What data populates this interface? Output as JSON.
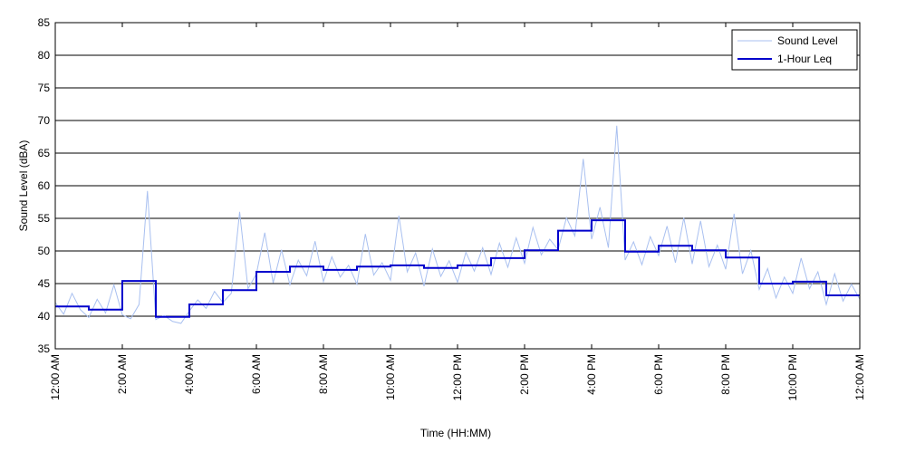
{
  "chart_data": {
    "type": "line",
    "x_label": "Time (HH:MM)",
    "y_label": "Sound Level (dBA)",
    "xlim": [
      0,
      24
    ],
    "xticks": [
      {
        "value": 0,
        "label": "12:00 AM"
      },
      {
        "value": 2,
        "label": "2:00 AM"
      },
      {
        "value": 4,
        "label": "4:00 AM"
      },
      {
        "value": 6,
        "label": "6:00 AM"
      },
      {
        "value": 8,
        "label": "8:00 AM"
      },
      {
        "value": 10,
        "label": "10:00 AM"
      },
      {
        "value": 12,
        "label": "12:00 PM"
      },
      {
        "value": 14,
        "label": "2:00 PM"
      },
      {
        "value": 16,
        "label": "4:00 PM"
      },
      {
        "value": 18,
        "label": "6:00 PM"
      },
      {
        "value": 20,
        "label": "8:00 PM"
      },
      {
        "value": 22,
        "label": "10:00 PM"
      },
      {
        "value": 24,
        "label": "12:00 AM"
      }
    ],
    "ylim": [
      35,
      85
    ],
    "yticks": [
      35,
      40,
      45,
      50,
      55,
      60,
      65,
      70,
      75,
      80,
      85
    ],
    "grid": true,
    "legend": "top-right",
    "series": [
      {
        "name": "Sound Level",
        "color": "#a9c0f0",
        "step": false,
        "x": [
          0,
          0.25,
          0.5,
          0.75,
          1,
          1.25,
          1.5,
          1.75,
          2,
          2.25,
          2.5,
          2.75,
          3,
          3.25,
          3.5,
          3.75,
          4,
          4.25,
          4.5,
          4.75,
          5,
          5.25,
          5.5,
          5.75,
          6,
          6.25,
          6.5,
          6.75,
          7,
          7.25,
          7.5,
          7.75,
          8,
          8.25,
          8.5,
          8.75,
          9,
          9.25,
          9.5,
          9.75,
          10,
          10.25,
          10.5,
          10.75,
          11,
          11.25,
          11.5,
          11.75,
          12,
          12.25,
          12.5,
          12.75,
          13,
          13.25,
          13.5,
          13.75,
          14,
          14.25,
          14.5,
          14.75,
          15,
          15.25,
          15.5,
          15.75,
          16,
          16.25,
          16.5,
          16.75,
          17,
          17.25,
          17.5,
          17.75,
          18,
          18.25,
          18.5,
          18.75,
          19,
          19.25,
          19.5,
          19.75,
          20,
          20.25,
          20.5,
          20.75,
          21,
          21.25,
          21.5,
          21.75,
          22,
          22.25,
          22.5,
          22.75,
          23,
          23.25,
          23.5,
          23.75,
          24
        ],
        "values": [
          42.1,
          40.3,
          43.5,
          41.0,
          39.8,
          42.6,
          40.5,
          44.8,
          40.2,
          39.6,
          41.8,
          59.2,
          39.5,
          40.1,
          39.2,
          38.9,
          40.8,
          42.5,
          41.2,
          43.8,
          42.1,
          43.5,
          56.0,
          44.2,
          46.5,
          52.8,
          45.1,
          50.2,
          44.8,
          48.6,
          46.2,
          51.5,
          45.3,
          49.1,
          46.0,
          47.8,
          44.9,
          52.6,
          46.3,
          48.2,
          45.5,
          55.4,
          46.8,
          49.7,
          44.6,
          50.3,
          46.1,
          48.5,
          45.2,
          49.8,
          46.9,
          50.5,
          46.4,
          51.2,
          47.5,
          52.0,
          48.1,
          53.6,
          49.4,
          51.8,
          50.2,
          55.1,
          52.3,
          64.1,
          51.8,
          56.7,
          50.5,
          69.2,
          48.6,
          51.4,
          47.9,
          52.2,
          49.3,
          53.8,
          48.2,
          55.1,
          48.0,
          54.6,
          47.6,
          50.9,
          47.2,
          55.7,
          46.5,
          50.1,
          44.1,
          47.3,
          42.8,
          46.0,
          43.5,
          48.9,
          44.2,
          46.8,
          41.8,
          46.5,
          42.3,
          44.9,
          42.6
        ]
      },
      {
        "name": "1-Hour Leq",
        "color": "#0000cc",
        "step": true,
        "x": [
          0,
          1,
          2,
          3,
          4,
          5,
          6,
          7,
          8,
          9,
          10,
          11,
          12,
          13,
          14,
          15,
          16,
          17,
          18,
          19,
          20,
          21,
          22,
          23
        ],
        "values": [
          41.5,
          41.0,
          45.4,
          39.9,
          41.8,
          44.0,
          46.8,
          47.6,
          47.1,
          47.6,
          47.8,
          47.4,
          47.8,
          48.9,
          50.1,
          53.1,
          54.7,
          49.9,
          50.8,
          50.1,
          49.0,
          45.0,
          45.3,
          43.2
        ]
      }
    ]
  }
}
